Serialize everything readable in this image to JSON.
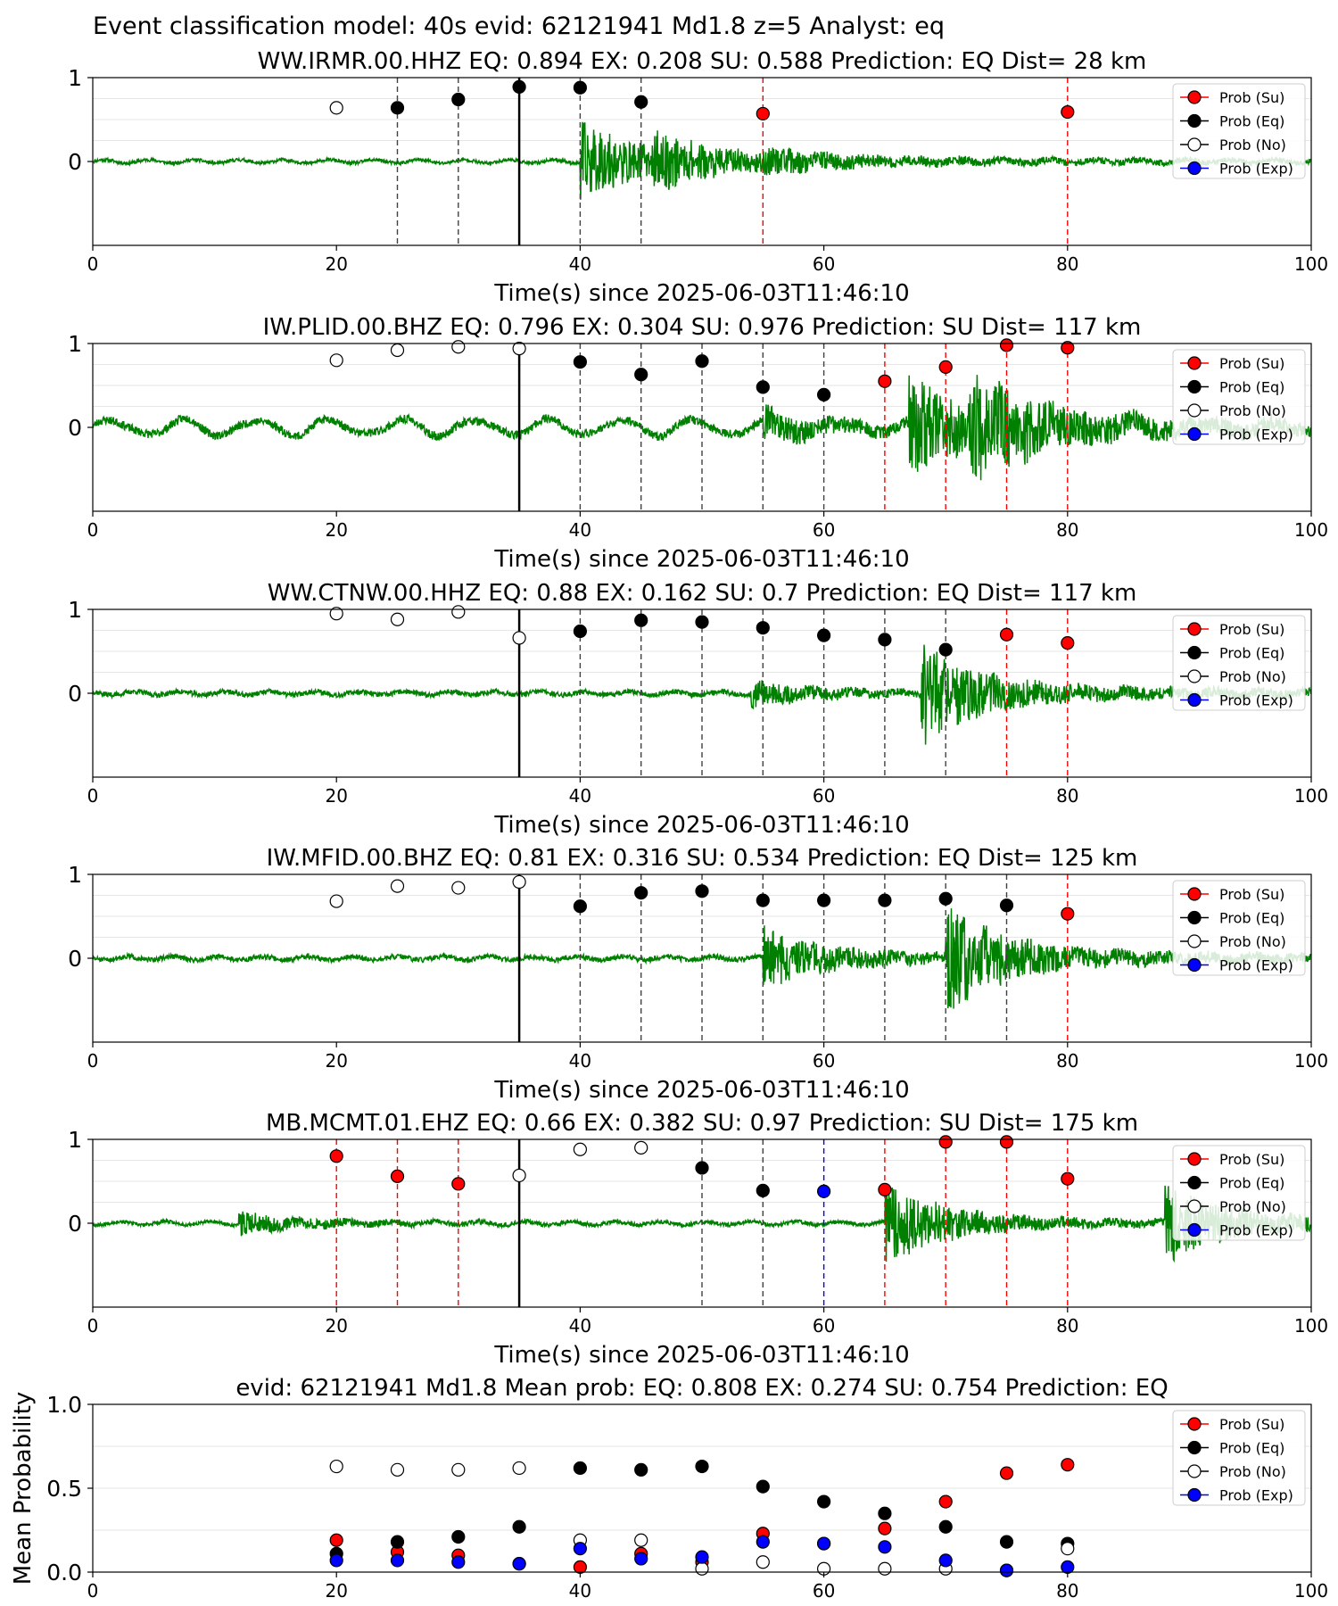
{
  "suptitle": "Event classification model: 40s evid: 62121941 Md1.8 z=5 Analyst: eq",
  "legend_labels": [
    "Prob (Su)",
    "Prob (Eq)",
    "Prob (No)",
    "Prob (Exp)"
  ],
  "colors": {
    "su": "#ff0000",
    "eq": "#000000",
    "no": "#ffffff",
    "exp": "#0000ff",
    "trace": "#008000",
    "trace_light": "#a8d8a8"
  },
  "chart_data": [
    {
      "type": "scatter",
      "title": "WW.IRMR.00.HHZ   EQ: 0.894   EX: 0.208   SU: 0.588   Prediction: EQ    Dist= 28 km",
      "xlabel": "Time(s) since 2025-06-03T11:46:10",
      "ylabel": "",
      "xlim": [
        0,
        100
      ],
      "ylim": [
        -1,
        1
      ],
      "xticks": [
        "0",
        "20",
        "40",
        "60",
        "80",
        "100"
      ],
      "yticks": [
        "0",
        "1"
      ],
      "pick_time": 35,
      "trace": {
        "onsets": [
          [
            40,
            0.45
          ],
          [
            46,
            0.2
          ],
          [
            55,
            0.08
          ]
        ],
        "noise": 0.02,
        "seed": 11
      },
      "points": [
        {
          "x": 20,
          "y": 0.64,
          "cls": "no"
        },
        {
          "x": 25,
          "y": 0.64,
          "cls": "eq"
        },
        {
          "x": 30,
          "y": 0.74,
          "cls": "eq"
        },
        {
          "x": 35,
          "y": 0.89,
          "cls": "eq"
        },
        {
          "x": 40,
          "y": 0.88,
          "cls": "eq"
        },
        {
          "x": 45,
          "y": 0.71,
          "cls": "eq"
        },
        {
          "x": 55,
          "y": 0.57,
          "cls": "su"
        },
        {
          "x": 80,
          "y": 0.59,
          "cls": "su"
        }
      ]
    },
    {
      "type": "scatter",
      "title": "IW.PLID.00.BHZ   EQ: 0.796   EX: 0.304   SU: 0.976   Prediction: SU    Dist= 117 km",
      "xlabel": "Time(s) since 2025-06-03T11:46:10",
      "ylabel": "",
      "xlim": [
        0,
        100
      ],
      "ylim": [
        -1,
        1
      ],
      "xticks": [
        "0",
        "20",
        "40",
        "60",
        "80",
        "100"
      ],
      "yticks": [
        "0",
        "1"
      ],
      "pick_time": 35,
      "trace": {
        "onsets": [
          [
            55,
            0.15
          ],
          [
            67,
            0.55
          ],
          [
            72,
            0.45
          ]
        ],
        "noise": 0.05,
        "wobble": 0.09,
        "seed": 23
      },
      "points": [
        {
          "x": 20,
          "y": 0.8,
          "cls": "no"
        },
        {
          "x": 25,
          "y": 0.92,
          "cls": "no"
        },
        {
          "x": 30,
          "y": 0.96,
          "cls": "no"
        },
        {
          "x": 35,
          "y": 0.94,
          "cls": "no"
        },
        {
          "x": 40,
          "y": 0.78,
          "cls": "eq"
        },
        {
          "x": 45,
          "y": 0.63,
          "cls": "eq"
        },
        {
          "x": 50,
          "y": 0.79,
          "cls": "eq"
        },
        {
          "x": 55,
          "y": 0.48,
          "cls": "eq"
        },
        {
          "x": 60,
          "y": 0.39,
          "cls": "eq"
        },
        {
          "x": 65,
          "y": 0.55,
          "cls": "su"
        },
        {
          "x": 70,
          "y": 0.72,
          "cls": "su"
        },
        {
          "x": 75,
          "y": 0.98,
          "cls": "su"
        },
        {
          "x": 80,
          "y": 0.95,
          "cls": "su"
        }
      ]
    },
    {
      "type": "scatter",
      "title": "WW.CTNW.00.HHZ   EQ: 0.88   EX: 0.162   SU: 0.7   Prediction: EQ    Dist= 117 km",
      "xlabel": "Time(s) since 2025-06-03T11:46:10",
      "ylabel": "",
      "xlim": [
        0,
        100
      ],
      "ylim": [
        -1,
        1
      ],
      "xticks": [
        "0",
        "20",
        "40",
        "60",
        "80",
        "100"
      ],
      "yticks": [
        "0",
        "1"
      ],
      "pick_time": 35,
      "trace": {
        "onsets": [
          [
            54,
            0.14
          ],
          [
            68,
            0.55
          ]
        ],
        "noise": 0.03,
        "seed": 37
      },
      "points": [
        {
          "x": 20,
          "y": 0.95,
          "cls": "no"
        },
        {
          "x": 25,
          "y": 0.88,
          "cls": "no"
        },
        {
          "x": 30,
          "y": 0.97,
          "cls": "no"
        },
        {
          "x": 35,
          "y": 0.66,
          "cls": "no"
        },
        {
          "x": 40,
          "y": 0.74,
          "cls": "eq"
        },
        {
          "x": 45,
          "y": 0.87,
          "cls": "eq"
        },
        {
          "x": 50,
          "y": 0.85,
          "cls": "eq"
        },
        {
          "x": 55,
          "y": 0.78,
          "cls": "eq"
        },
        {
          "x": 60,
          "y": 0.69,
          "cls": "eq"
        },
        {
          "x": 65,
          "y": 0.64,
          "cls": "eq"
        },
        {
          "x": 70,
          "y": 0.52,
          "cls": "eq"
        },
        {
          "x": 75,
          "y": 0.7,
          "cls": "su"
        },
        {
          "x": 80,
          "y": 0.6,
          "cls": "su"
        }
      ]
    },
    {
      "type": "scatter",
      "title": "IW.MFID.00.BHZ   EQ: 0.81   EX: 0.316   SU: 0.534   Prediction: EQ    Dist= 125 km",
      "xlabel": "Time(s) since 2025-06-03T11:46:10",
      "ylabel": "",
      "xlim": [
        0,
        100
      ],
      "ylim": [
        -1,
        1
      ],
      "xticks": [
        "0",
        "20",
        "40",
        "60",
        "80",
        "100"
      ],
      "yticks": [
        "0",
        "1"
      ],
      "pick_time": 35,
      "trace": {
        "onsets": [
          [
            55,
            0.35
          ],
          [
            70,
            0.55
          ]
        ],
        "noise": 0.03,
        "seed": 51
      },
      "points": [
        {
          "x": 20,
          "y": 0.68,
          "cls": "no"
        },
        {
          "x": 25,
          "y": 0.86,
          "cls": "no"
        },
        {
          "x": 30,
          "y": 0.84,
          "cls": "no"
        },
        {
          "x": 35,
          "y": 0.91,
          "cls": "no"
        },
        {
          "x": 40,
          "y": 0.62,
          "cls": "eq"
        },
        {
          "x": 45,
          "y": 0.78,
          "cls": "eq"
        },
        {
          "x": 50,
          "y": 0.8,
          "cls": "eq"
        },
        {
          "x": 55,
          "y": 0.69,
          "cls": "eq"
        },
        {
          "x": 60,
          "y": 0.69,
          "cls": "eq"
        },
        {
          "x": 65,
          "y": 0.69,
          "cls": "eq"
        },
        {
          "x": 70,
          "y": 0.71,
          "cls": "eq"
        },
        {
          "x": 75,
          "y": 0.63,
          "cls": "eq"
        },
        {
          "x": 80,
          "y": 0.53,
          "cls": "su"
        }
      ]
    },
    {
      "type": "scatter",
      "title": "MB.MCMT.01.EHZ   EQ: 0.66   EX: 0.382   SU: 0.97   Prediction: SU    Dist= 175 km",
      "xlabel": "Time(s) since 2025-06-03T11:46:10",
      "ylabel": "",
      "xlim": [
        0,
        100
      ],
      "ylim": [
        -1,
        1
      ],
      "xticks": [
        "0",
        "20",
        "40",
        "60",
        "80",
        "100"
      ],
      "yticks": [
        "0",
        "1"
      ],
      "pick_time": 35,
      "trace": {
        "onsets": [
          [
            12,
            0.12
          ],
          [
            65,
            0.45
          ],
          [
            88,
            0.4
          ]
        ],
        "noise": 0.02,
        "seed": 67
      },
      "points": [
        {
          "x": 20,
          "y": 0.8,
          "cls": "su"
        },
        {
          "x": 25,
          "y": 0.56,
          "cls": "su"
        },
        {
          "x": 30,
          "y": 0.47,
          "cls": "su"
        },
        {
          "x": 35,
          "y": 0.57,
          "cls": "no"
        },
        {
          "x": 40,
          "y": 0.88,
          "cls": "no"
        },
        {
          "x": 45,
          "y": 0.9,
          "cls": "no"
        },
        {
          "x": 50,
          "y": 0.66,
          "cls": "eq"
        },
        {
          "x": 55,
          "y": 0.39,
          "cls": "eq"
        },
        {
          "x": 60,
          "y": 0.38,
          "cls": "exp"
        },
        {
          "x": 65,
          "y": 0.4,
          "cls": "su"
        },
        {
          "x": 70,
          "y": 0.97,
          "cls": "su"
        },
        {
          "x": 75,
          "y": 0.97,
          "cls": "su"
        },
        {
          "x": 80,
          "y": 0.53,
          "cls": "su"
        }
      ]
    },
    {
      "type": "scatter",
      "title": "evid: 62121941  Md1.8   Mean prob:   EQ: 0.808  EX: 0.274  SU: 0.754   Prediction: EQ",
      "xlabel": "",
      "ylabel": "Mean Probability",
      "xlim": [
        0,
        100
      ],
      "ylim": [
        0,
        1
      ],
      "xticks": [
        "0",
        "20",
        "40",
        "60",
        "80",
        "100"
      ],
      "yticks": [
        "0.0",
        "0.5",
        "1.0"
      ],
      "series": [
        {
          "name": "Prob (Su)",
          "cls": "su",
          "x": [
            20,
            25,
            30,
            35,
            40,
            45,
            50,
            55,
            60,
            65,
            70,
            75,
            80
          ],
          "y": [
            0.19,
            0.12,
            0.1,
            0.05,
            0.03,
            0.11,
            0.06,
            0.23,
            0.17,
            0.26,
            0.42,
            0.59,
            0.64
          ]
        },
        {
          "name": "Prob (Eq)",
          "cls": "eq",
          "x": [
            20,
            25,
            30,
            35,
            40,
            45,
            50,
            55,
            60,
            65,
            70,
            75,
            80
          ],
          "y": [
            0.11,
            0.18,
            0.21,
            0.27,
            0.62,
            0.61,
            0.63,
            0.51,
            0.42,
            0.35,
            0.27,
            0.18,
            0.17
          ]
        },
        {
          "name": "Prob (No)",
          "cls": "no",
          "x": [
            20,
            25,
            30,
            35,
            40,
            45,
            50,
            55,
            60,
            65,
            70,
            75,
            80
          ],
          "y": [
            0.63,
            0.61,
            0.61,
            0.62,
            0.19,
            0.19,
            0.02,
            0.06,
            0.02,
            0.02,
            0.02,
            0.01,
            0.14
          ]
        },
        {
          "name": "Prob (Exp)",
          "cls": "exp",
          "x": [
            20,
            25,
            30,
            35,
            40,
            45,
            50,
            55,
            60,
            65,
            70,
            75,
            80
          ],
          "y": [
            0.07,
            0.07,
            0.06,
            0.05,
            0.14,
            0.08,
            0.09,
            0.18,
            0.17,
            0.15,
            0.07,
            0.01,
            0.03
          ]
        }
      ]
    }
  ]
}
